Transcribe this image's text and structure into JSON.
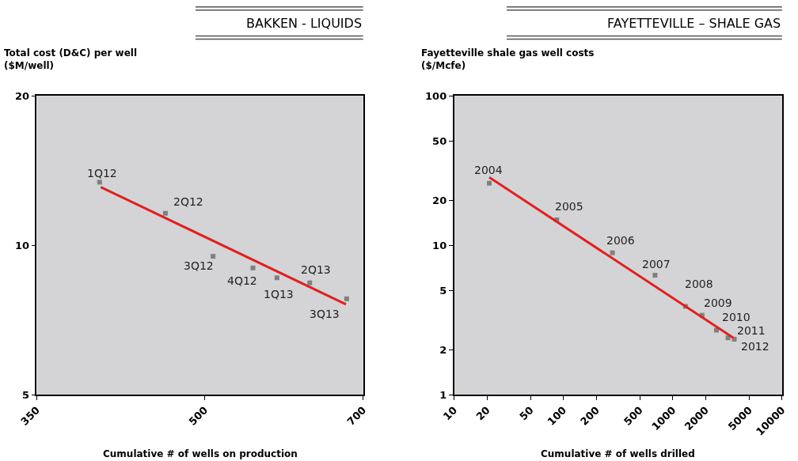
{
  "chart_data": [
    {
      "type": "scatter",
      "title": "BAKKEN - LIQUIDS",
      "ylabel": "Total cost (D&C) per well\n($M/well)",
      "xlabel": "Cumulative # of wells on production",
      "log": "xy",
      "xlim": [
        350,
        700
      ],
      "xticks": [
        350,
        500,
        700
      ],
      "ylim": [
        5,
        20
      ],
      "yticks": [
        5,
        10,
        20
      ],
      "grid": false,
      "series": [
        {
          "marker": "square",
          "color": "#808080",
          "x": [
            400,
            460,
            509,
            554,
            583,
            625,
            676
          ],
          "values": [
            13.4,
            11.6,
            9.5,
            9.0,
            8.6,
            8.4,
            7.8
          ]
        },
        {
          "type": "line",
          "marker": "none",
          "color": "#e02020",
          "x": [
            401,
            675
          ],
          "values": [
            13.1,
            7.6
          ]
        }
      ],
      "annotations": [
        {
          "text": "1Q12",
          "x": 400,
          "y": 13.4
        },
        {
          "text": "2Q12",
          "x": 460,
          "y": 11.6
        },
        {
          "text": "3Q12",
          "x": 509,
          "y": 9.5
        },
        {
          "text": "4Q12",
          "x": 554,
          "y": 9.0
        },
        {
          "text": "1Q13",
          "x": 583,
          "y": 8.6
        },
        {
          "text": "2Q13",
          "x": 625,
          "y": 8.4
        },
        {
          "text": "3Q13",
          "x": 676,
          "y": 7.8
        }
      ]
    },
    {
      "type": "scatter",
      "title": "FAYETTEVILLE – SHALE GAS",
      "ylabel": "Fayetteville shale gas well costs\n($/Mcfe)",
      "xlabel": "Cumulative # of wells drilled",
      "log": "xy",
      "xlim": [
        10,
        10000
      ],
      "xticks": [
        10,
        20,
        50,
        100,
        200,
        500,
        1000,
        2000,
        5000,
        10000
      ],
      "ylim": [
        1,
        100
      ],
      "yticks": [
        1,
        2,
        5,
        10,
        20,
        50,
        100
      ],
      "grid": false,
      "series": [
        {
          "marker": "square",
          "color": "#808080",
          "x": [
            21,
            87,
            281,
            689,
            1307,
            1857,
            2512,
            3207,
            3656
          ],
          "values": [
            26,
            14.8,
            8.9,
            6.3,
            3.9,
            3.4,
            2.7,
            2.4,
            2.35
          ]
        },
        {
          "type": "line",
          "marker": "none",
          "color": "#e02020",
          "x": [
            21,
            3589
          ],
          "values": [
            28.5,
            2.4
          ]
        }
      ],
      "annotations": [
        {
          "text": "2004",
          "x": 21,
          "y": 26
        },
        {
          "text": "2005",
          "x": 87,
          "y": 14.8
        },
        {
          "text": "2006",
          "x": 281,
          "y": 8.9
        },
        {
          "text": "2007",
          "x": 689,
          "y": 6.3
        },
        {
          "text": "2008",
          "x": 1307,
          "y": 3.9
        },
        {
          "text": "2009",
          "x": 1857,
          "y": 3.4
        },
        {
          "text": "2010",
          "x": 2512,
          "y": 2.7
        },
        {
          "text": "2011",
          "x": 3207,
          "y": 2.4
        },
        {
          "text": "2012",
          "x": 3656,
          "y": 2.35
        }
      ]
    }
  ]
}
